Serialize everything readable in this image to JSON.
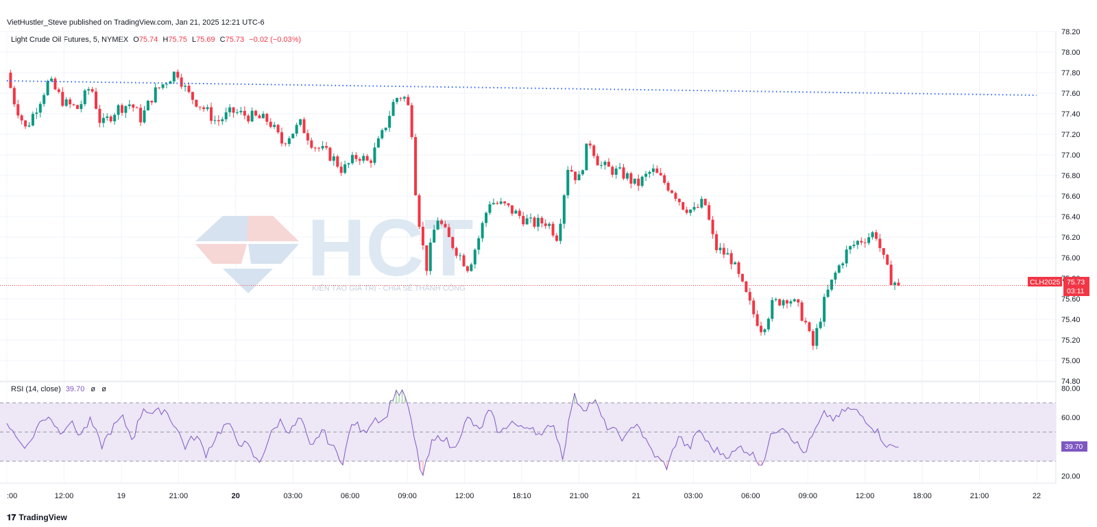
{
  "header": {
    "published": "VietHustler_Steve published on TradingView.com, Jan 21, 2025 12:21 UTC-6"
  },
  "legend": {
    "symbol": "Light Crude Oil Futures, 5, NYMEX",
    "o_label": "O",
    "o_value": "75.74",
    "h_label": "H",
    "h_value": "75.75",
    "l_label": "L",
    "l_value": "75.69",
    "c_label": "C",
    "c_value": "75.73",
    "change": "−0.02 (−0.03%)"
  },
  "rsi_legend": {
    "name": "RSI (14, close)",
    "value": "39.70",
    "empty1": "ø",
    "empty2": "ø"
  },
  "price_tag": {
    "symbol": "CLH2025",
    "price": "75.73",
    "countdown": "03:11"
  },
  "rsi_tag": {
    "value": "39.70"
  },
  "watermark": {
    "letters": "HCT",
    "slogan": "KIẾN TẠO GIÁ TRỊ - CHIA SẺ THÀNH CÔNG"
  },
  "footer": {
    "brand": "TradingView",
    "icon": "tradingview-logo-icon"
  },
  "colors": {
    "up": "#089981",
    "down": "#f23645",
    "rsi_line": "#7e57c2",
    "rsi_band": "#ede7f6",
    "dotted_line": "#2962ff",
    "grid": "#f0f3fa"
  },
  "chart_data": [
    {
      "type": "candlestick",
      "title": "Light Crude Oil Futures, 5, NYMEX",
      "price_axis": {
        "ticks": [
          "78.20",
          "78.00",
          "77.80",
          "77.60",
          "77.40",
          "77.20",
          "77.00",
          "76.80",
          "76.60",
          "76.40",
          "76.20",
          "76.00",
          "75.80",
          "75.60",
          "75.40",
          "75.20",
          "75.00",
          "74.80"
        ],
        "ylim": [
          74.8,
          78.2
        ]
      },
      "time_axis": {
        "ticks": [
          {
            "label": ":00",
            "bold": false
          },
          {
            "label": "12:00",
            "bold": false
          },
          {
            "label": "19",
            "bold": false
          },
          {
            "label": "21:00",
            "bold": false
          },
          {
            "label": "20",
            "bold": true
          },
          {
            "label": "03:00",
            "bold": false
          },
          {
            "label": "06:00",
            "bold": false
          },
          {
            "label": "09:00",
            "bold": false
          },
          {
            "label": "12:00",
            "bold": false
          },
          {
            "label": "18:10",
            "bold": false
          },
          {
            "label": "21:00",
            "bold": false
          },
          {
            "label": "21",
            "bold": false
          },
          {
            "label": "03:00",
            "bold": false
          },
          {
            "label": "06:00",
            "bold": false
          },
          {
            "label": "09:00",
            "bold": false
          },
          {
            "label": "12:00",
            "bold": false
          },
          {
            "label": "18:00",
            "bold": false
          },
          {
            "label": "21:00",
            "bold": false
          },
          {
            "label": "22",
            "bold": false
          }
        ]
      },
      "trendline": {
        "style": "dotted",
        "from": 77.72,
        "to": 77.58
      },
      "last_price": 75.73,
      "path_keypoints": [
        [
          0,
          77.8
        ],
        [
          0.006,
          77.55
        ],
        [
          0.018,
          77.25
        ],
        [
          0.03,
          77.5
        ],
        [
          0.04,
          77.72
        ],
        [
          0.055,
          77.5
        ],
        [
          0.068,
          77.45
        ],
        [
          0.08,
          77.68
        ],
        [
          0.09,
          77.28
        ],
        [
          0.105,
          77.45
        ],
        [
          0.118,
          77.5
        ],
        [
          0.128,
          77.35
        ],
        [
          0.14,
          77.6
        ],
        [
          0.155,
          77.75
        ],
        [
          0.162,
          77.82
        ],
        [
          0.172,
          77.6
        ],
        [
          0.188,
          77.45
        ],
        [
          0.2,
          77.32
        ],
        [
          0.215,
          77.42
        ],
        [
          0.23,
          77.38
        ],
        [
          0.25,
          77.33
        ],
        [
          0.262,
          77.12
        ],
        [
          0.28,
          77.3
        ],
        [
          0.292,
          77.1
        ],
        [
          0.31,
          76.98
        ],
        [
          0.32,
          76.85
        ],
        [
          0.335,
          77.0
        ],
        [
          0.345,
          76.92
        ],
        [
          0.358,
          77.2
        ],
        [
          0.37,
          77.55
        ],
        [
          0.378,
          77.58
        ],
        [
          0.385,
          77.4
        ],
        [
          0.39,
          76.6
        ],
        [
          0.395,
          76.2
        ],
        [
          0.4,
          75.9
        ],
        [
          0.41,
          76.4
        ],
        [
          0.42,
          76.2
        ],
        [
          0.43,
          76.05
        ],
        [
          0.44,
          75.9
        ],
        [
          0.45,
          76.2
        ],
        [
          0.46,
          76.55
        ],
        [
          0.475,
          76.5
        ],
        [
          0.5,
          76.33
        ],
        [
          0.515,
          76.35
        ],
        [
          0.525,
          76.2
        ],
        [
          0.535,
          76.9
        ],
        [
          0.545,
          76.75
        ],
        [
          0.555,
          77.15
        ],
        [
          0.565,
          76.9
        ],
        [
          0.59,
          76.8
        ],
        [
          0.6,
          76.7
        ],
        [
          0.615,
          76.85
        ],
        [
          0.635,
          76.65
        ],
        [
          0.645,
          76.5
        ],
        [
          0.655,
          76.45
        ],
        [
          0.665,
          76.55
        ],
        [
          0.675,
          76.1
        ],
        [
          0.69,
          76.0
        ],
        [
          0.7,
          75.75
        ],
        [
          0.712,
          75.45
        ],
        [
          0.72,
          75.3
        ],
        [
          0.73,
          75.55
        ],
        [
          0.745,
          75.62
        ],
        [
          0.755,
          75.5
        ],
        [
          0.762,
          75.35
        ],
        [
          0.768,
          75.12
        ],
        [
          0.78,
          75.6
        ],
        [
          0.79,
          75.85
        ],
        [
          0.8,
          76.05
        ],
        [
          0.81,
          76.15
        ],
        [
          0.82,
          76.2
        ],
        [
          0.828,
          76.25
        ],
        [
          0.835,
          76.0
        ],
        [
          0.842,
          75.8
        ],
        [
          0.85,
          75.73
        ]
      ]
    },
    {
      "type": "line",
      "name": "RSI (14, close)",
      "axis_ticks": [
        "80.00",
        "60.00",
        "20.00"
      ],
      "ylim": [
        15,
        84
      ],
      "bands": {
        "upper": 70,
        "middle": 50,
        "lower": 30
      },
      "last_value": 39.7,
      "path_keypoints": [
        [
          0,
          57
        ],
        [
          0.01,
          45
        ],
        [
          0.02,
          40
        ],
        [
          0.03,
          55
        ],
        [
          0.04,
          62
        ],
        [
          0.05,
          50
        ],
        [
          0.06,
          57
        ],
        [
          0.07,
          48
        ],
        [
          0.08,
          58
        ],
        [
          0.09,
          40
        ],
        [
          0.1,
          52
        ],
        [
          0.11,
          60
        ],
        [
          0.12,
          45
        ],
        [
          0.13,
          67
        ],
        [
          0.14,
          62
        ],
        [
          0.15,
          66
        ],
        [
          0.16,
          55
        ],
        [
          0.17,
          40
        ],
        [
          0.18,
          48
        ],
        [
          0.19,
          35
        ],
        [
          0.2,
          48
        ],
        [
          0.21,
          56
        ],
        [
          0.22,
          44
        ],
        [
          0.23,
          40
        ],
        [
          0.24,
          28
        ],
        [
          0.25,
          46
        ],
        [
          0.26,
          58
        ],
        [
          0.27,
          50
        ],
        [
          0.28,
          60
        ],
        [
          0.29,
          37
        ],
        [
          0.3,
          52
        ],
        [
          0.31,
          40
        ],
        [
          0.32,
          30
        ],
        [
          0.33,
          58
        ],
        [
          0.34,
          49
        ],
        [
          0.35,
          60
        ],
        [
          0.36,
          58
        ],
        [
          0.37,
          78
        ],
        [
          0.38,
          75
        ],
        [
          0.39,
          40
        ],
        [
          0.396,
          18
        ],
        [
          0.405,
          42
        ],
        [
          0.415,
          48
        ],
        [
          0.425,
          38
        ],
        [
          0.44,
          60
        ],
        [
          0.45,
          50
        ],
        [
          0.46,
          65
        ],
        [
          0.47,
          48
        ],
        [
          0.48,
          58
        ],
        [
          0.49,
          52
        ],
        [
          0.5,
          55
        ],
        [
          0.51,
          46
        ],
        [
          0.52,
          58
        ],
        [
          0.53,
          33
        ],
        [
          0.54,
          75
        ],
        [
          0.55,
          66
        ],
        [
          0.56,
          72
        ],
        [
          0.57,
          55
        ],
        [
          0.58,
          50
        ],
        [
          0.59,
          45
        ],
        [
          0.6,
          58
        ],
        [
          0.61,
          42
        ],
        [
          0.62,
          32
        ],
        [
          0.63,
          26
        ],
        [
          0.64,
          48
        ],
        [
          0.65,
          38
        ],
        [
          0.66,
          52
        ],
        [
          0.67,
          40
        ],
        [
          0.68,
          36
        ],
        [
          0.69,
          34
        ],
        [
          0.7,
          40
        ],
        [
          0.71,
          35
        ],
        [
          0.72,
          28
        ],
        [
          0.73,
          50
        ],
        [
          0.74,
          55
        ],
        [
          0.75,
          45
        ],
        [
          0.76,
          35
        ],
        [
          0.77,
          50
        ],
        [
          0.78,
          63
        ],
        [
          0.79,
          58
        ],
        [
          0.8,
          66
        ],
        [
          0.81,
          64
        ],
        [
          0.82,
          58
        ],
        [
          0.83,
          50
        ],
        [
          0.84,
          40
        ],
        [
          0.85,
          39.7
        ]
      ]
    }
  ]
}
